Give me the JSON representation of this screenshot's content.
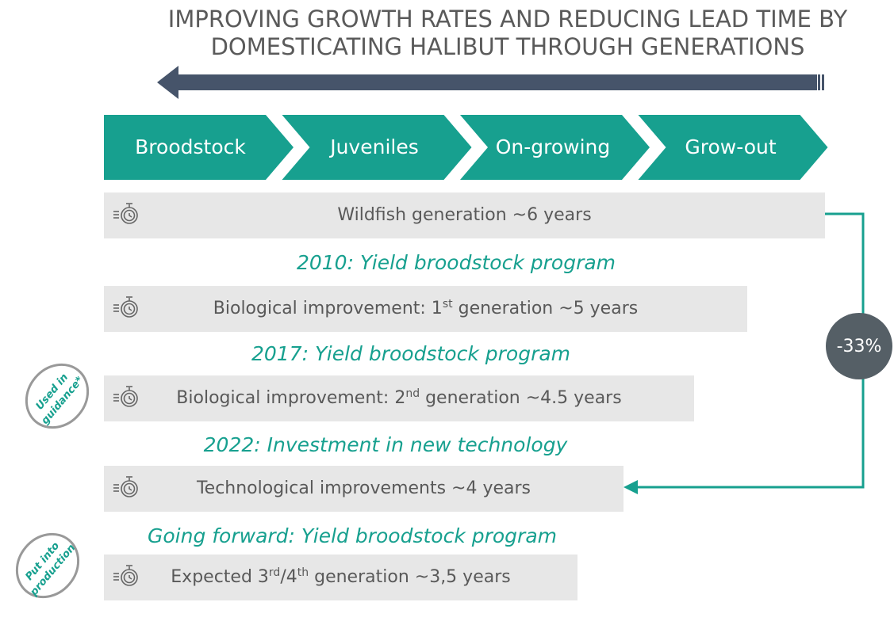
{
  "header": {
    "title": [
      "IMPROVING GROWTH RATES AND REDUCING LEAD TIME BY",
      "DOMESTICATING HALIBUT THROUGH GENERATIONS"
    ]
  },
  "stages": [
    "Broodstock",
    "Juveniles",
    "On-growing",
    "Grow-out"
  ],
  "rows": [
    {
      "bar": [
        {
          "text": "Wildfish generation ~6 years"
        }
      ]
    },
    {
      "heading": "2010: Yield broodstock program",
      "bar": [
        {
          "text": "Biological improvement: 1"
        },
        {
          "text": "st",
          "sup": true
        },
        {
          "text": " generation ~5 years"
        }
      ]
    },
    {
      "heading": "2017: Yield broodstock program",
      "bar": [
        {
          "text": "Biological improvement: 2"
        },
        {
          "text": "nd",
          "sup": true
        },
        {
          "text": " generation ~4.5 years"
        }
      ]
    },
    {
      "heading": "2022: Investment in new technology",
      "bar": [
        {
          "text": "Technological improvements ~4 years"
        }
      ]
    },
    {
      "heading": "Going forward: Yield broodstock program",
      "bar": [
        {
          "text": "Expected 3"
        },
        {
          "text": "rd",
          "sup": true
        },
        {
          "text": "/4"
        },
        {
          "text": "th",
          "sup": true
        },
        {
          "text": " generation ~3,5 years"
        }
      ]
    }
  ],
  "reduction": "-33%",
  "stamps": [
    [
      "Used in",
      "guidance*"
    ],
    [
      "Put into",
      "production"
    ]
  ]
}
